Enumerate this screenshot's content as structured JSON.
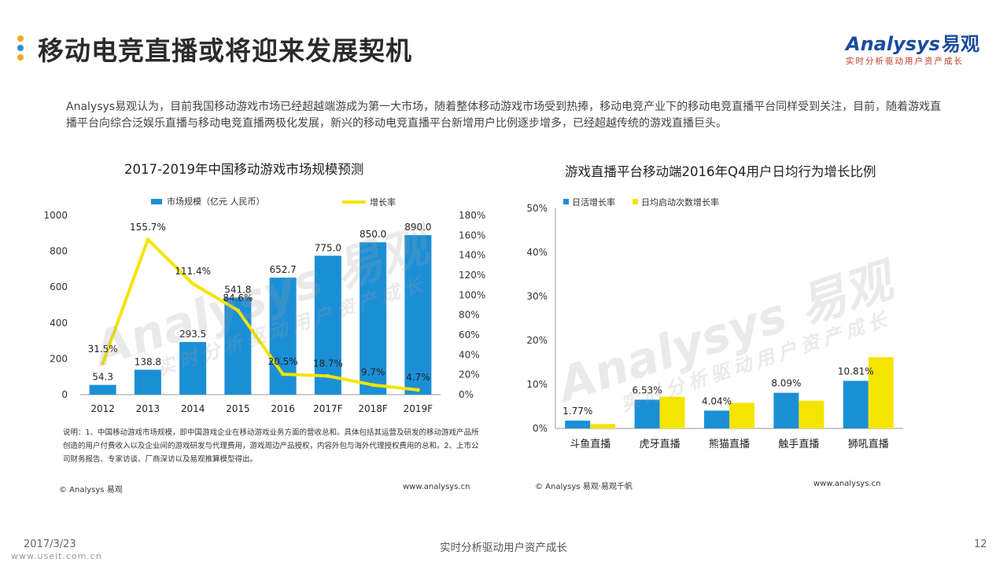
{
  "header": {
    "title": "移动电竞直播或将迎来发展契机",
    "dot_colors": [
      "#f5a623",
      "#2b8fd6",
      "#f5a623"
    ],
    "logo_text": "Analysys",
    "logo_cn": "易观",
    "logo_tagline": "实时分析驱动用户资产成长"
  },
  "intro": "Analysys易观认为，目前我国移动游戏市场已经超越端游成为第一大市场，随着整体移动游戏市场受到热捧，移动电竞产业下的移动电竞直播平台同样受到关注，目前，随着游戏直播平台向综合泛娱乐直播与移动电竞直播两极化发展，新兴的移动电竞直播平台新增用户比例逐步增多，已经超越传统的游戏直播巨头。",
  "watermark": {
    "brand": "Analysys 易观",
    "tagline": "实时分析驱动用户资产成长"
  },
  "left_panel": {
    "note": "说明：1、中国移动游戏市场规模，即中国游戏企业在移动游戏业务方面的营收总和。具体包括其运营及研发的移动游戏产品所创造的用户付费收入以及企业间的游戏研发与代理费用，游戏周边产品授权，内容外包与海外代理授权费用的总和。2、上市公司财务报告、专家访谈、厂商深访以及易观推算模型得出。",
    "source": "© Analysys 易观",
    "url": "www.analysys.cn"
  },
  "right_panel": {
    "source": "© Analysys 易观·易观千帆",
    "url": "www.analysys.cn"
  },
  "footer": {
    "date": "2017/3/23",
    "tagline": "实时分析驱动用户资产成长",
    "page": "12",
    "site": "www.useit.com.cn"
  },
  "chart_data": [
    {
      "type": "bar",
      "title": "2017-2019年中国移动游戏市场规模预测",
      "categories": [
        "2012",
        "2013",
        "2014",
        "2015",
        "2016",
        "2017F",
        "2018F",
        "2019F"
      ],
      "series": [
        {
          "name": "市场规模（亿元 人民币）",
          "type": "bar",
          "axis": "left",
          "color": "#1b8fd6",
          "values": [
            54.3,
            138.8,
            293.5,
            541.8,
            652.7,
            775.0,
            850.0,
            890.0
          ],
          "labels": [
            "54.3",
            "138.8",
            "293.5",
            "541.8",
            "652.7",
            "775.0",
            "850.0",
            "890.0"
          ]
        },
        {
          "name": "增长率",
          "type": "line",
          "axis": "right",
          "color": "#f5e400",
          "values": [
            31.5,
            155.7,
            111.4,
            84.6,
            20.5,
            18.7,
            9.7,
            4.7
          ],
          "labels": [
            "31.5%",
            "155.7%",
            "111.4%",
            "84.6%",
            "20.5%",
            "18.7%",
            "9.7%",
            "4.7%"
          ]
        }
      ],
      "ylim": [
        0,
        1000
      ],
      "yticks": [
        "0",
        "200",
        "400",
        "600",
        "800",
        "1000"
      ],
      "ylim_right": [
        0,
        180
      ],
      "yticks_right": [
        "0%",
        "20%",
        "40%",
        "60%",
        "80%",
        "100%",
        "120%",
        "140%",
        "160%",
        "180%"
      ],
      "legend_position": "top",
      "grid": false
    },
    {
      "type": "bar",
      "title": "游戏直播平台移动端2016年Q4用户日均行为增长比例",
      "categories": [
        "斗鱼直播",
        "虎牙直播",
        "熊猫直播",
        "触手直播",
        "狮吼直播"
      ],
      "series": [
        {
          "name": "日活增长率",
          "color": "#1b8fd6",
          "values": [
            1.77,
            6.53,
            4.04,
            8.09,
            10.81
          ],
          "labels": [
            "1.77%",
            "6.53%",
            "4.04%",
            "8.09%",
            "10.81%"
          ]
        },
        {
          "name": "日均启动次数增长率",
          "color": "#f5e400",
          "values": [
            1.0,
            7.2,
            5.8,
            6.3,
            16.2
          ]
        }
      ],
      "ylim": [
        0,
        50
      ],
      "yticks": [
        "0%",
        "10%",
        "20%",
        "30%",
        "40%",
        "50%"
      ],
      "legend_position": "top-left",
      "grid": false
    }
  ]
}
